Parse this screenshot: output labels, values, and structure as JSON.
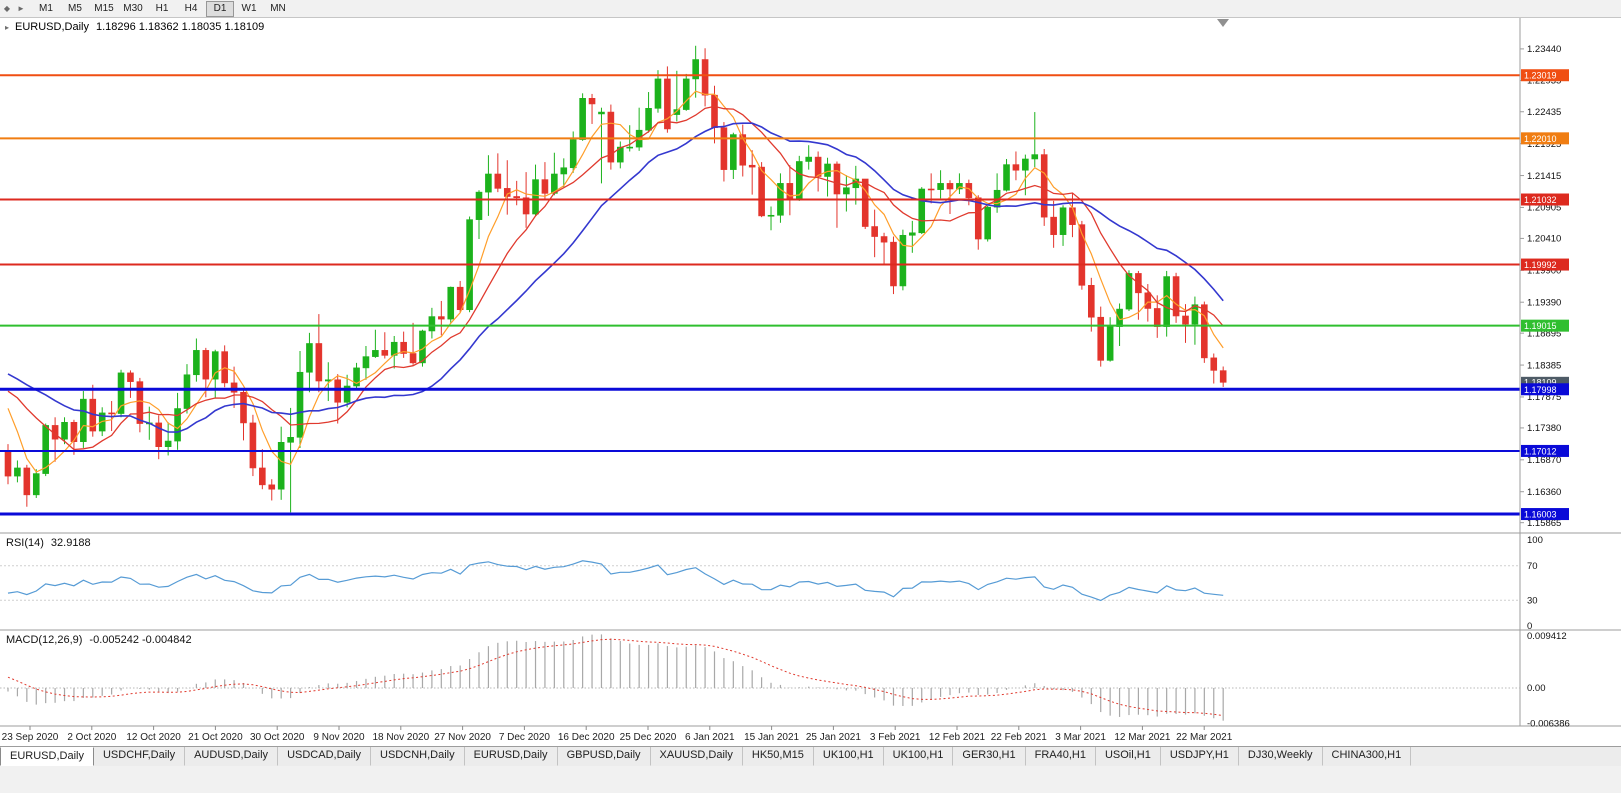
{
  "icons": {
    "chart_bullet": "◆",
    "chart_arrow": "►",
    "collapse_chart": "▸"
  },
  "toolbar": {
    "timeframes": [
      "M1",
      "M5",
      "M15",
      "M30",
      "H1",
      "H4",
      "D1",
      "W1",
      "MN"
    ],
    "active_timeframe": "D1"
  },
  "chart_data": {
    "type": "candlestick",
    "title": "EURUSD,Daily",
    "ohlc_text": "1.18296 1.18362 1.18035 1.18109",
    "current_price": {
      "label": "1.18109",
      "color": "#4e5b66"
    },
    "colors": {
      "bull": "#1cb21c",
      "bear": "#e3342c",
      "background": "#ffffff",
      "axis_text": "#111111"
    },
    "price_top": 1.2395,
    "price_bottom": 1.157,
    "y_axis_ticks": [
      "1.23440",
      "1.22935",
      "1.22435",
      "1.21925",
      "1.21415",
      "1.20905",
      "1.20410",
      "1.19900",
      "1.19390",
      "1.18895",
      "1.18385",
      "1.17875",
      "1.17380",
      "1.16870",
      "1.16360",
      "1.15865"
    ],
    "x_labels": [
      "23 Sep 2020",
      "2 Oct 2020",
      "12 Oct 2020",
      "21 Oct 2020",
      "30 Oct 2020",
      "9 Nov 2020",
      "18 Nov 2020",
      "27 Nov 2020",
      "7 Dec 2020",
      "16 Dec 2020",
      "25 Dec 2020",
      "6 Jan 2021",
      "15 Jan 2021",
      "25 Jan 2021",
      "3 Feb 2021",
      "12 Feb 2021",
      "22 Feb 2021",
      "3 Mar 2021",
      "12 Mar 2021",
      "22 Mar 2021"
    ],
    "h_lines": [
      {
        "label": "1.23019",
        "price": 1.23019,
        "color": "#f04e12",
        "width": 2
      },
      {
        "label": "1.22010",
        "price": 1.2201,
        "color": "#f07d12",
        "width": 2
      },
      {
        "label": "1.21032",
        "price": 1.21032,
        "color": "#dd2a1f",
        "width": 2
      },
      {
        "label": "1.19992",
        "price": 1.19992,
        "color": "#dd2a1f",
        "width": 2
      },
      {
        "label": "1.19015",
        "price": 1.19015,
        "color": "#2fbf2f",
        "width": 2
      },
      {
        "label": "1.17998",
        "price": 1.17998,
        "color": "#0a0ad8",
        "width": 3
      },
      {
        "label": "1.17012",
        "price": 1.17012,
        "color": "#0a0ad8",
        "width": 2
      },
      {
        "label": "1.16003",
        "price": 1.16003,
        "color": "#0a0ad8",
        "width": 3
      }
    ],
    "overlays": [
      {
        "name": "ma-fast",
        "period": 5,
        "color": "#ff9e2a",
        "width": 1.2
      },
      {
        "name": "ma-mid",
        "period": 10,
        "color": "#e03a2e",
        "width": 1.3
      },
      {
        "name": "ma-slow",
        "period": 20,
        "color": "#3438cf",
        "width": 1.6
      }
    ],
    "indicators": [
      {
        "label": "RSI(14)",
        "value_text": "32.9188",
        "color": "#569bd5",
        "levels": [
          100,
          70,
          30,
          0
        ]
      },
      {
        "label": "MACD(12,26,9)",
        "value_text": "-0.005242 -0.004842",
        "histogram_color": "#a8a8a8",
        "signal_color": "#e03a2e",
        "axis_labels": [
          "0.009412",
          "0.00",
          "-0.006386"
        ]
      }
    ],
    "warmup_closes": [
      1.1402,
      1.1427,
      1.1452,
      1.1483,
      1.1522,
      1.158,
      1.165,
      1.1702,
      1.1722,
      1.1752,
      1.1778,
      1.1762,
      1.1731,
      1.18,
      1.1826,
      1.1878,
      1.1855,
      1.183,
      1.179,
      1.1812,
      1.1841,
      1.1932,
      1.1852,
      1.184,
      1.193,
      1.192,
      1.184,
      1.1812,
      1.183,
      1.19,
      1.1906,
      1.1911,
      1.185,
      1.1812,
      1.184,
      1.1818,
      1.1781,
      1.1802,
      1.1816,
      1.1875,
      1.1846,
      1.186,
      1.1847,
      1.1772,
      1.1707
    ],
    "candles_ohlc": [
      [
        1.1702,
        1.1712,
        1.1648,
        1.1661
      ],
      [
        1.1661,
        1.1686,
        1.1651,
        1.1674
      ],
      [
        1.1674,
        1.1679,
        1.1612,
        1.1631
      ],
      [
        1.1631,
        1.1672,
        1.1626,
        1.1665
      ],
      [
        1.1665,
        1.1745,
        1.1661,
        1.1742
      ],
      [
        1.1742,
        1.1755,
        1.1684,
        1.172
      ],
      [
        1.172,
        1.1755,
        1.1712,
        1.1747
      ],
      [
        1.1747,
        1.1751,
        1.1695,
        1.1716
      ],
      [
        1.1716,
        1.1797,
        1.1706,
        1.1784
      ],
      [
        1.1784,
        1.1807,
        1.1724,
        1.1733
      ],
      [
        1.1733,
        1.1771,
        1.1725,
        1.1762
      ],
      [
        1.1762,
        1.1781,
        1.1733,
        1.1761
      ],
      [
        1.1761,
        1.1831,
        1.1755,
        1.1826
      ],
      [
        1.1826,
        1.183,
        1.1786,
        1.1812
      ],
      [
        1.1812,
        1.1818,
        1.1731,
        1.1745
      ],
      [
        1.1745,
        1.1772,
        1.1719,
        1.1746
      ],
      [
        1.1746,
        1.1758,
        1.1688,
        1.1708
      ],
      [
        1.1708,
        1.1747,
        1.1694,
        1.1717
      ],
      [
        1.1717,
        1.1794,
        1.1703,
        1.1769
      ],
      [
        1.1769,
        1.184,
        1.1761,
        1.1823
      ],
      [
        1.1823,
        1.1881,
        1.1812,
        1.1862
      ],
      [
        1.1862,
        1.1866,
        1.1787,
        1.1816
      ],
      [
        1.1816,
        1.1863,
        1.1786,
        1.186
      ],
      [
        1.186,
        1.187,
        1.1803,
        1.181
      ],
      [
        1.181,
        1.1836,
        1.177,
        1.1795
      ],
      [
        1.1795,
        1.18,
        1.1718,
        1.1746
      ],
      [
        1.1746,
        1.1759,
        1.1661,
        1.1674
      ],
      [
        1.1674,
        1.1704,
        1.164,
        1.1647
      ],
      [
        1.1647,
        1.1656,
        1.1622,
        1.164
      ],
      [
        1.164,
        1.174,
        1.1623,
        1.1715
      ],
      [
        1.1715,
        1.177,
        1.1603,
        1.1723
      ],
      [
        1.1723,
        1.1861,
        1.1706,
        1.1827
      ],
      [
        1.1827,
        1.189,
        1.1795,
        1.1873
      ],
      [
        1.1873,
        1.192,
        1.1795,
        1.1813
      ],
      [
        1.1813,
        1.1843,
        1.1781,
        1.1815
      ],
      [
        1.1815,
        1.1824,
        1.1745,
        1.1779
      ],
      [
        1.1779,
        1.1823,
        1.1771,
        1.1805
      ],
      [
        1.1805,
        1.1842,
        1.1799,
        1.1834
      ],
      [
        1.1834,
        1.1869,
        1.1815,
        1.1852
      ],
      [
        1.1852,
        1.1895,
        1.185,
        1.1862
      ],
      [
        1.1862,
        1.1891,
        1.1849,
        1.1854
      ],
      [
        1.1854,
        1.1885,
        1.1833,
        1.1875
      ],
      [
        1.1875,
        1.1892,
        1.185,
        1.1857
      ],
      [
        1.1857,
        1.1906,
        1.1839,
        1.1842
      ],
      [
        1.1842,
        1.1895,
        1.1836,
        1.1893
      ],
      [
        1.1893,
        1.193,
        1.1881,
        1.1916
      ],
      [
        1.1916,
        1.1941,
        1.1886,
        1.1912
      ],
      [
        1.1912,
        1.1964,
        1.1906,
        1.1963
      ],
      [
        1.1963,
        1.1973,
        1.1923,
        1.1927
      ],
      [
        1.1927,
        1.2076,
        1.1923,
        1.2071
      ],
      [
        1.2071,
        1.2118,
        1.204,
        1.2115
      ],
      [
        1.2115,
        1.2174,
        1.2077,
        1.2144
      ],
      [
        1.2144,
        1.2177,
        1.2115,
        1.2121
      ],
      [
        1.2121,
        1.2166,
        1.2079,
        1.2108
      ],
      [
        1.2108,
        1.2133,
        1.2094,
        1.2106
      ],
      [
        1.2106,
        1.2147,
        1.2058,
        1.208
      ],
      [
        1.208,
        1.2159,
        1.2076,
        1.2135
      ],
      [
        1.2135,
        1.2163,
        1.2103,
        1.2113
      ],
      [
        1.2113,
        1.2178,
        1.211,
        1.2144
      ],
      [
        1.2144,
        1.2169,
        1.2123,
        1.2154
      ],
      [
        1.2154,
        1.2212,
        1.2146,
        1.2199
      ],
      [
        1.2199,
        1.2273,
        1.2197,
        1.2265
      ],
      [
        1.2265,
        1.2272,
        1.2224,
        1.2256
      ],
      [
        1.224,
        1.225,
        1.2129,
        1.2243
      ],
      [
        1.2243,
        1.2255,
        1.2151,
        1.2163
      ],
      [
        1.2163,
        1.2196,
        1.2153,
        1.2187
      ],
      [
        1.2187,
        1.2222,
        1.218,
        1.2187
      ],
      [
        1.2187,
        1.225,
        1.2181,
        1.2214
      ],
      [
        1.2214,
        1.2275,
        1.221,
        1.2249
      ],
      [
        1.2249,
        1.231,
        1.2242,
        1.2296
      ],
      [
        1.2296,
        1.2316,
        1.221,
        1.2216
      ],
      [
        1.2239,
        1.2309,
        1.2228,
        1.2247
      ],
      [
        1.2247,
        1.2304,
        1.2245,
        1.2296
      ],
      [
        1.2296,
        1.2349,
        1.2266,
        1.2327
      ],
      [
        1.2327,
        1.2345,
        1.2252,
        1.227
      ],
      [
        1.227,
        1.2285,
        1.2193,
        1.2218
      ],
      [
        1.2218,
        1.2227,
        1.2132,
        1.2151
      ],
      [
        1.2151,
        1.221,
        1.2136,
        1.2207
      ],
      [
        1.2207,
        1.2223,
        1.214,
        1.2158
      ],
      [
        1.2158,
        1.2182,
        1.2111,
        1.2155
      ],
      [
        1.2155,
        1.2163,
        1.2075,
        1.2077
      ],
      [
        1.2077,
        1.2092,
        1.2054,
        1.2078
      ],
      [
        1.2078,
        1.2145,
        1.2066,
        1.2129
      ],
      [
        1.2129,
        1.2158,
        1.2078,
        1.2105
      ],
      [
        1.2105,
        1.2173,
        1.2101,
        1.2164
      ],
      [
        1.2164,
        1.219,
        1.2151,
        1.2171
      ],
      [
        1.2171,
        1.218,
        1.2116,
        1.214
      ],
      [
        1.214,
        1.217,
        1.2108,
        1.216
      ],
      [
        1.216,
        1.2164,
        1.2058,
        1.2112
      ],
      [
        1.2112,
        1.2142,
        1.2084,
        1.2122
      ],
      [
        1.2122,
        1.2157,
        1.2095,
        1.2136
      ],
      [
        1.2136,
        1.2136,
        1.2056,
        1.206
      ],
      [
        1.206,
        1.2087,
        1.2011,
        1.2044
      ],
      [
        1.2044,
        1.205,
        1.1999,
        1.2035
      ],
      [
        1.2035,
        1.2044,
        1.1952,
        1.1965
      ],
      [
        1.1965,
        1.2055,
        1.1958,
        1.2046
      ],
      [
        1.2046,
        1.2069,
        1.2018,
        1.205
      ],
      [
        1.205,
        1.2123,
        1.2048,
        1.212
      ],
      [
        1.212,
        1.2145,
        1.2097,
        1.2119
      ],
      [
        1.2119,
        1.215,
        1.2105,
        1.2129
      ],
      [
        1.2129,
        1.2134,
        1.208,
        1.212
      ],
      [
        1.212,
        1.2145,
        1.2112,
        1.2129
      ],
      [
        1.2129,
        1.2135,
        1.2094,
        1.2106
      ],
      [
        1.2106,
        1.211,
        1.2023,
        1.204
      ],
      [
        1.204,
        1.2093,
        1.2036,
        1.2091
      ],
      [
        1.2091,
        1.2145,
        1.2082,
        1.2118
      ],
      [
        1.2118,
        1.2168,
        1.2116,
        1.2159
      ],
      [
        1.2159,
        1.218,
        1.2134,
        1.215
      ],
      [
        1.215,
        1.2175,
        1.211,
        1.2168
      ],
      [
        1.2168,
        1.2243,
        1.2155,
        1.2175
      ],
      [
        1.2175,
        1.2184,
        1.2061,
        1.2075
      ],
      [
        1.2075,
        1.2101,
        1.2026,
        1.2047
      ],
      [
        1.2047,
        1.2094,
        1.2029,
        1.209
      ],
      [
        1.209,
        1.2113,
        1.2043,
        1.2063
      ],
      [
        1.2063,
        1.2069,
        1.1959,
        1.1966
      ],
      [
        1.1966,
        1.1978,
        1.1892,
        1.1915
      ],
      [
        1.1915,
        1.1932,
        1.1836,
        1.1846
      ],
      [
        1.1846,
        1.1915,
        1.1844,
        1.19
      ],
      [
        1.19,
        1.1937,
        1.1869,
        1.1928
      ],
      [
        1.1928,
        1.199,
        1.1925,
        1.1985
      ],
      [
        1.1985,
        1.1989,
        1.1911,
        1.1954
      ],
      [
        1.1954,
        1.1968,
        1.1908,
        1.1929
      ],
      [
        1.1929,
        1.195,
        1.1882,
        1.19
      ],
      [
        1.19,
        1.1989,
        1.1884,
        1.198
      ],
      [
        1.198,
        1.1986,
        1.1906,
        1.1917
      ],
      [
        1.1917,
        1.1936,
        1.1874,
        1.1904
      ],
      [
        1.1904,
        1.1948,
        1.1871,
        1.1935
      ],
      [
        1.1935,
        1.194,
        1.1842,
        1.185
      ],
      [
        1.185,
        1.1857,
        1.1809,
        1.183
      ],
      [
        1.18296,
        1.18362,
        1.18035,
        1.18109
      ]
    ]
  },
  "tabbar": {
    "tabs": [
      "EURUSD,Daily",
      "USDCHF,Daily",
      "AUDUSD,Daily",
      "USDCAD,Daily",
      "USDCNH,Daily",
      "EURUSD,Daily",
      "GBPUSD,Daily",
      "XAUUSD,Daily",
      "HK50,M15",
      "UK100,H1",
      "UK100,H1",
      "GER30,H1",
      "FRA40,H1",
      "USOil,H1",
      "USDJPY,H1",
      "DJ30,Weekly",
      "CHINA300,H1"
    ],
    "active_index": 0
  }
}
